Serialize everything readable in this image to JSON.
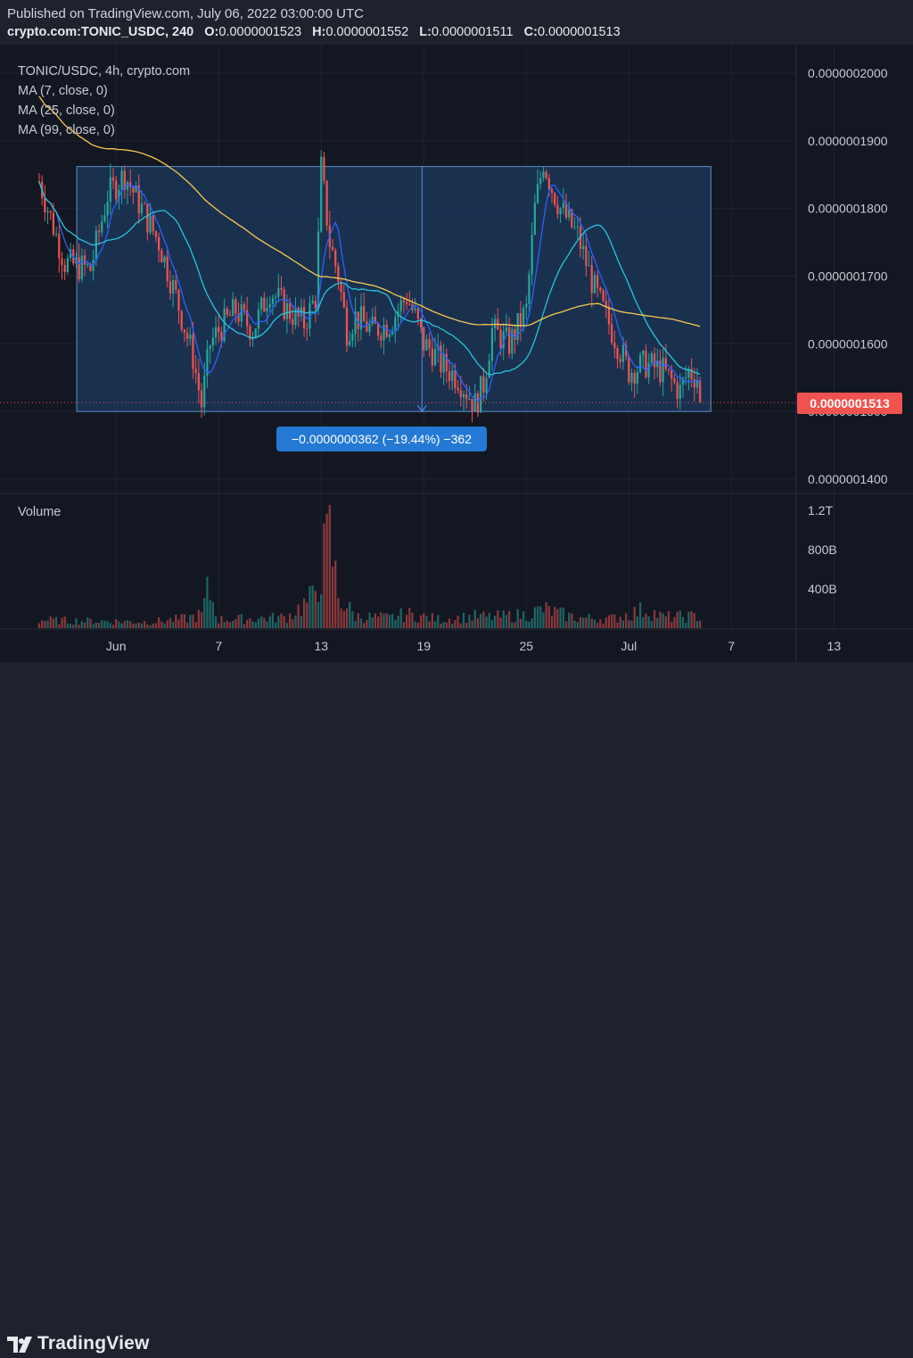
{
  "header": {
    "published": "Published on TradingView.com, July 06, 2022 03:00:00 UTC",
    "symbol": "crypto.com:TONIC_USDC, 240",
    "o_label": "O:",
    "o_value": "0.0000001523",
    "h_label": "H:",
    "h_value": "0.0000001552",
    "l_label": "L:",
    "l_value": "0.0000001511",
    "c_label": "C:",
    "c_value": "0.0000001513"
  },
  "legend": {
    "title": "TONIC/USDC, 4h, crypto.com",
    "ma7": "MA (7, close, 0)",
    "ma25": "MA (25, close, 0)",
    "ma99": "MA (99, close, 0)"
  },
  "volume_label": "Volume",
  "measure_label": "−0.0000000362 (−19.44%) −362",
  "last_price_label": "0.0000001513",
  "branding": {
    "name": "TradingView"
  },
  "colors": {
    "background": "#131722",
    "up": "#26a69a",
    "down": "#ef5350",
    "ma7": "#2962ff",
    "ma25": "#26c6da",
    "ma99": "#f9c74f",
    "range_box": "#1e3a5f",
    "measure_badge": "#2479d4",
    "last_price": "#f05350"
  },
  "chart_data": {
    "type": "candlestick",
    "price_axis": {
      "range": [
        1.35e-07,
        2.05e-07
      ],
      "ticks": [
        "0.0000002000",
        "0.0000001900",
        "0.0000001800",
        "0.0000001700",
        "0.0000001600",
        "0.0000001500",
        "0.0000001400"
      ],
      "tick_values": [
        2e-07,
        1.9e-07,
        1.8e-07,
        1.7e-07,
        1.6e-07,
        1.5e-07,
        1.4e-07
      ]
    },
    "volume_axis": {
      "ticks": [
        "1.2T",
        "800B",
        "400B"
      ],
      "tick_values": [
        1200,
        800,
        400
      ]
    },
    "time_axis": {
      "ticks": [
        "Jun",
        "7",
        "13",
        "19",
        "25",
        "Jul",
        "7",
        "13"
      ],
      "tick_days": [
        1,
        7,
        13,
        19,
        25,
        31,
        37,
        43
      ]
    },
    "range_box": {
      "day_start": -1.3,
      "day_end": 35.8,
      "price_top": 1.862e-07,
      "price_bottom": 1.5e-07
    },
    "close_keypoints": [
      [
        -3.5,
        1.84e-07
      ],
      [
        -2,
        1.72e-07
      ],
      [
        -0.5,
        1.71e-07
      ],
      [
        0.5,
        1.82e-07
      ],
      [
        1.5,
        1.85e-07
      ],
      [
        2.5,
        1.8e-07
      ],
      [
        3.5,
        1.75e-07
      ],
      [
        4.5,
        1.67e-07
      ],
      [
        5.5,
        1.58e-07
      ],
      [
        6,
        1.51e-07
      ],
      [
        6.5,
        1.6e-07
      ],
      [
        7,
        1.62e-07
      ],
      [
        8,
        1.65e-07
      ],
      [
        9,
        1.62e-07
      ],
      [
        10,
        1.68e-07
      ],
      [
        11,
        1.65e-07
      ],
      [
        12,
        1.63e-07
      ],
      [
        12.7,
        1.67e-07
      ],
      [
        13,
        1.86e-07
      ],
      [
        13.5,
        1.75e-07
      ],
      [
        14,
        1.7e-07
      ],
      [
        14.5,
        1.62e-07
      ],
      [
        15,
        1.64e-07
      ],
      [
        16,
        1.62e-07
      ],
      [
        17,
        1.63e-07
      ],
      [
        18,
        1.67e-07
      ],
      [
        18.5,
        1.64e-07
      ],
      [
        19,
        1.6e-07
      ],
      [
        19.5,
        1.59e-07
      ],
      [
        20,
        1.57e-07
      ],
      [
        21,
        1.55e-07
      ],
      [
        22,
        1.51e-07
      ],
      [
        22.5,
        1.54e-07
      ],
      [
        23,
        1.62e-07
      ],
      [
        24,
        1.6e-07
      ],
      [
        25,
        1.65e-07
      ],
      [
        25.5,
        1.8e-07
      ],
      [
        26,
        1.87e-07
      ],
      [
        26.5,
        1.83e-07
      ],
      [
        27,
        1.8e-07
      ],
      [
        28,
        1.76e-07
      ],
      [
        29,
        1.68e-07
      ],
      [
        30,
        1.62e-07
      ],
      [
        31,
        1.56e-07
      ],
      [
        32,
        1.57e-07
      ],
      [
        33,
        1.56e-07
      ],
      [
        34,
        1.53e-07
      ],
      [
        34.5,
        1.56e-07
      ],
      [
        35,
        1.55e-07
      ],
      [
        35.3,
        1.513e-07
      ]
    ],
    "volume_keypoints": [
      [
        -3.5,
        100
      ],
      [
        0,
        90
      ],
      [
        3,
        80
      ],
      [
        5,
        120
      ],
      [
        6,
        170
      ],
      [
        6.4,
        500
      ],
      [
        7,
        110
      ],
      [
        9,
        120
      ],
      [
        11,
        140
      ],
      [
        12.5,
        380
      ],
      [
        13,
        780
      ],
      [
        13.5,
        1150
      ],
      [
        14,
        400
      ],
      [
        15,
        150
      ],
      [
        17,
        130
      ],
      [
        18,
        180
      ],
      [
        20,
        110
      ],
      [
        22,
        150
      ],
      [
        23,
        140
      ],
      [
        25,
        170
      ],
      [
        26,
        240
      ],
      [
        27,
        180
      ],
      [
        28,
        130
      ],
      [
        30,
        120
      ],
      [
        32,
        240
      ],
      [
        33,
        140
      ],
      [
        35,
        150
      ],
      [
        35.3,
        120
      ]
    ],
    "candle_interval_hours": 4,
    "last_close": 1.513e-07
  }
}
